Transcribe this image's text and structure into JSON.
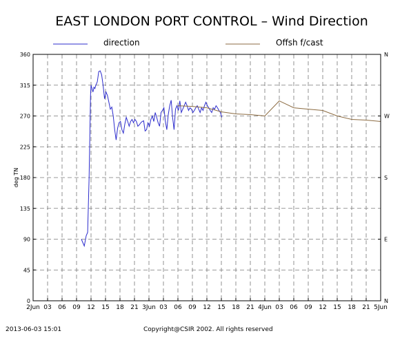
{
  "chart_data": {
    "type": "line",
    "title": "EAST LONDON PORT CONTROL – Wind Direction",
    "ylabel": "deg TN",
    "ylim": [
      0,
      360
    ],
    "yticks": [
      0,
      45,
      90,
      135,
      180,
      225,
      270,
      315,
      360
    ],
    "ytick_labels": [
      "0",
      "45",
      "90",
      "135",
      "180",
      "225",
      "270",
      "315",
      "360"
    ],
    "right_ticks": [
      {
        "value": 0,
        "label": "N"
      },
      {
        "value": 90,
        "label": "E"
      },
      {
        "value": 180,
        "label": "S"
      },
      {
        "value": 270,
        "label": "W"
      },
      {
        "value": 360,
        "label": "N"
      }
    ],
    "xlim": [
      0,
      72
    ],
    "xticks": [
      {
        "h": 0,
        "label": "2Jun"
      },
      {
        "h": 3,
        "label": "03"
      },
      {
        "h": 6,
        "label": "06"
      },
      {
        "h": 9,
        "label": "09"
      },
      {
        "h": 12,
        "label": "12"
      },
      {
        "h": 15,
        "label": "15"
      },
      {
        "h": 18,
        "label": "18"
      },
      {
        "h": 21,
        "label": "21"
      },
      {
        "h": 24,
        "label": "3Jun"
      },
      {
        "h": 27,
        "label": "03"
      },
      {
        "h": 30,
        "label": "06"
      },
      {
        "h": 33,
        "label": "09"
      },
      {
        "h": 36,
        "label": "12"
      },
      {
        "h": 39,
        "label": "15"
      },
      {
        "h": 42,
        "label": "18"
      },
      {
        "h": 45,
        "label": "21"
      },
      {
        "h": 48,
        "label": "4Jun"
      },
      {
        "h": 51,
        "label": "03"
      },
      {
        "h": 54,
        "label": "06"
      },
      {
        "h": 57,
        "label": "09"
      },
      {
        "h": 60,
        "label": "12"
      },
      {
        "h": 63,
        "label": "15"
      },
      {
        "h": 66,
        "label": "18"
      },
      {
        "h": 69,
        "label": "21"
      },
      {
        "h": 72,
        "label": "5Jun"
      }
    ],
    "grid": true,
    "series": [
      {
        "name": "direction",
        "color": "#2b2bcc",
        "x": [
          10.0,
          10.3,
          10.6,
          11.0,
          11.3,
          11.6,
          11.9,
          12.0,
          12.2,
          12.4,
          12.6,
          12.8,
          13.0,
          13.3,
          13.6,
          13.9,
          14.2,
          14.5,
          14.8,
          15.1,
          15.4,
          15.7,
          16.0,
          16.3,
          16.6,
          16.9,
          17.2,
          17.5,
          17.8,
          18.1,
          18.4,
          18.7,
          19.0,
          19.3,
          19.6,
          19.9,
          20.2,
          20.5,
          20.8,
          21.1,
          21.4,
          21.7,
          22.0,
          22.3,
          22.6,
          22.9,
          23.2,
          23.5,
          23.8,
          24.1,
          24.4,
          24.7,
          25.0,
          25.3,
          25.6,
          25.9,
          26.2,
          26.5,
          26.8,
          27.1,
          27.4,
          27.7,
          28.0,
          28.3,
          28.6,
          28.9,
          29.2,
          29.5,
          29.8,
          30.1,
          30.4,
          30.7,
          31.0,
          31.3,
          31.6,
          31.9,
          32.2,
          32.5,
          32.8,
          33.1,
          33.4,
          33.7,
          34.0,
          34.3,
          34.6,
          34.9,
          35.2,
          35.5,
          35.8,
          36.1,
          36.4,
          36.7,
          37.0,
          37.3,
          37.6,
          37.9,
          38.2,
          38.5,
          38.8,
          39.1
        ],
        "y": [
          90,
          85,
          80,
          95,
          100,
          180,
          300,
          315,
          310,
          305,
          312,
          310,
          315,
          320,
          335,
          336,
          330,
          315,
          295,
          305,
          300,
          290,
          280,
          283,
          270,
          250,
          235,
          252,
          260,
          262,
          250,
          245,
          258,
          268,
          262,
          255,
          262,
          265,
          260,
          265,
          262,
          255,
          257,
          260,
          262,
          263,
          248,
          250,
          260,
          255,
          265,
          270,
          262,
          275,
          268,
          260,
          255,
          275,
          278,
          282,
          262,
          250,
          272,
          285,
          293,
          268,
          250,
          280,
          285,
          278,
          292,
          275,
          280,
          285,
          290,
          285,
          278,
          282,
          280,
          275,
          278,
          282,
          285,
          280,
          275,
          282,
          278,
          285,
          290,
          285,
          282,
          278,
          275,
          282,
          280,
          285,
          282,
          278,
          275,
          268
        ]
      },
      {
        "name": "Offsh f/cast",
        "color": "#8b6a40",
        "x": [
          30,
          33,
          36,
          39,
          42,
          45,
          48,
          51,
          54,
          57,
          60,
          63,
          66,
          69,
          72
        ],
        "y": [
          285,
          284,
          282,
          276,
          273,
          272,
          270,
          292,
          282,
          280,
          278,
          270,
          265,
          264,
          262
        ]
      }
    ]
  },
  "footer": {
    "timestamp": "2013-06-03 15:01",
    "copyright": "Copyright@CSIR 2002.  All rights reserved"
  }
}
